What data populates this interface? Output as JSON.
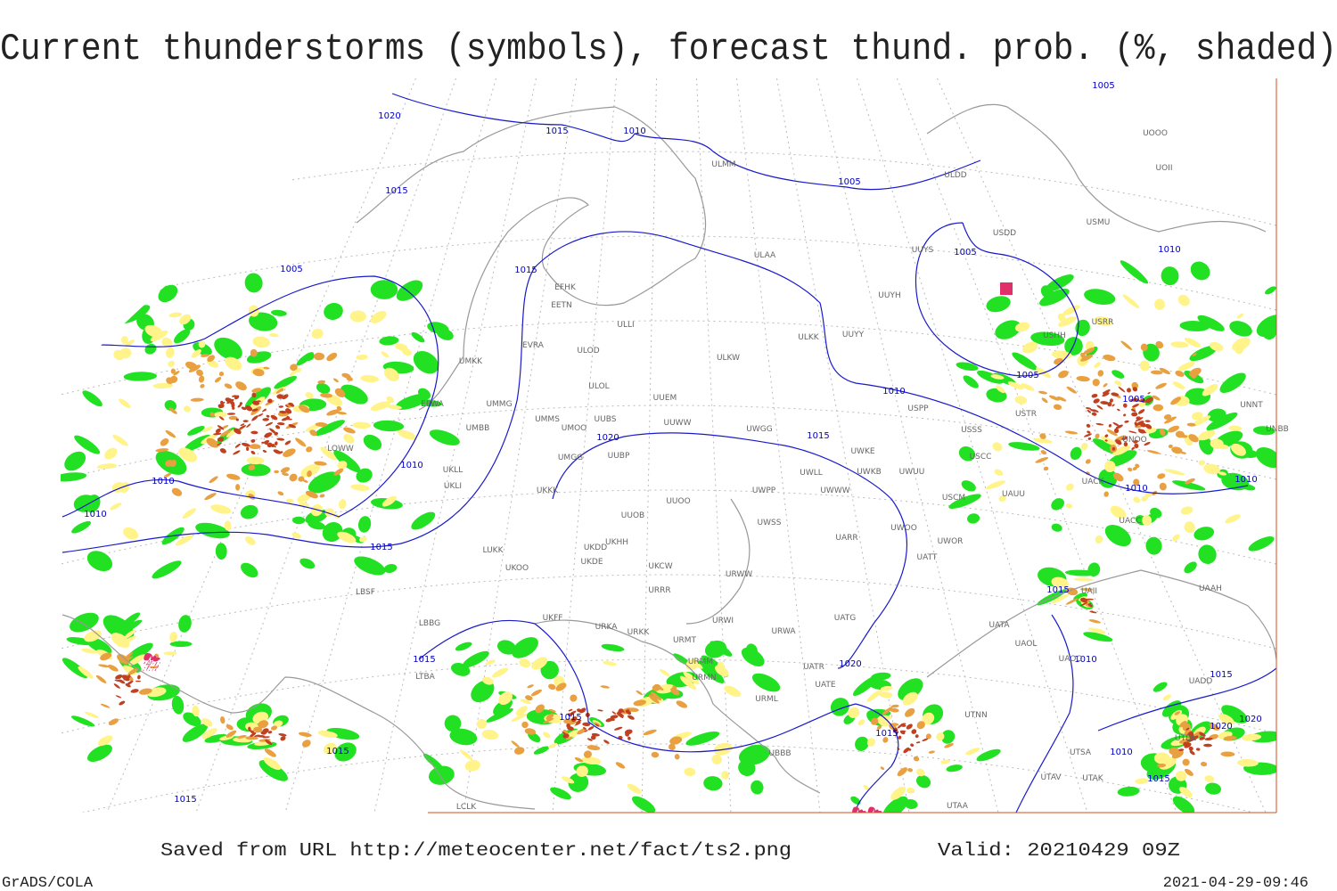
{
  "header": {
    "title": "Current thunderstorms (symbols), forecast thund. prob. (%, shaded)"
  },
  "isobar_labels": [
    "1020",
    "1015",
    "1010",
    "1015",
    "1005",
    "1005",
    "1005",
    "1010",
    "1005",
    "1015",
    "1005",
    "1005",
    "1010",
    "1015",
    "1020",
    "1010",
    "1010",
    "1010",
    "1010",
    "1010",
    "1015",
    "1015",
    "1010",
    "1015",
    "1020",
    "1015",
    "1020",
    "1020",
    "1015",
    "1015",
    "1015",
    "1010",
    "1015",
    "1015"
  ],
  "stations": [
    "ULMM",
    "ULDD",
    "USDD",
    "USMU",
    "UOOO",
    "UOII",
    "ULAA",
    "UUYS",
    "UUYH",
    "USRR",
    "USHH",
    "ULKK",
    "UUYY",
    "EFHK",
    "EETN",
    "ULLI",
    "EVRA",
    "ULOD",
    "ULKW",
    "UMKK",
    "ULOL",
    "UUEM",
    "EPWA",
    "UMMG",
    "UMMS",
    "UUBS",
    "UMOO",
    "UUWW",
    "USSS",
    "USPP",
    "USTR",
    "UWGG",
    "UNOO",
    "UNNT",
    "UNBB",
    "UMBB",
    "UWKE",
    "USCC",
    "UWUU",
    "UWKB",
    "UWLL",
    "UUBP",
    "UMGG",
    "LOWW",
    "UKLL",
    "UKLI",
    "UWWW",
    "UWPP",
    "UUOO",
    "UUOB",
    "USCM",
    "UAUU",
    "UACK",
    "UKKK",
    "UACC",
    "UWSS",
    "UKHH",
    "UKDD",
    "UARR",
    "UWOO",
    "UWOR",
    "LUKK",
    "UKOO",
    "UKDE",
    "UKCW",
    "UATT",
    "URWW",
    "URRR",
    "LBSF",
    "UAII",
    "UAAH",
    "LBBG",
    "UKFF",
    "URKA",
    "URKK",
    "URWI",
    "UATG",
    "UATA",
    "UAOL",
    "URMT",
    "URWA",
    "URMM",
    "UATR",
    "UAOO",
    "URMN",
    "UATE",
    "UADD",
    "URML",
    "LTBA",
    "UTNN",
    "UTDL",
    "UBBB",
    "UTSA",
    "UTAV",
    "UTAA",
    "LCLK",
    "UTAK"
  ],
  "footer": {
    "saved": "Saved from URL http://meteocenter.net/fact/ts2.png",
    "valid": "Valid: 20210429 09Z",
    "left": "GrADS/COLA",
    "right": "2021-04-29-09:46"
  }
}
